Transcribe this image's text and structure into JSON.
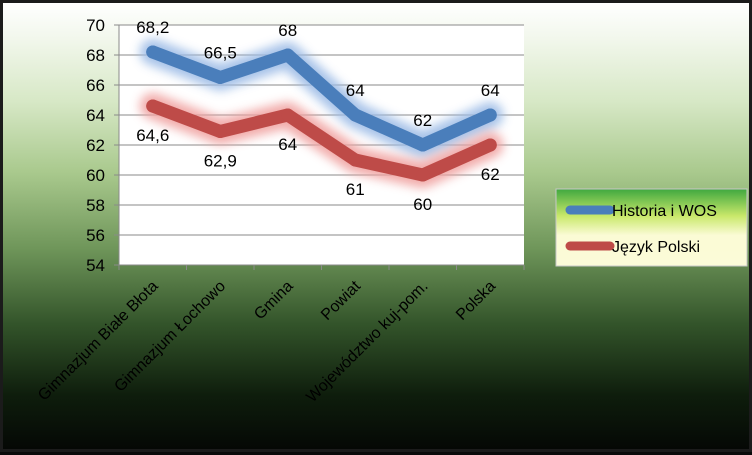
{
  "chart_data": {
    "type": "line",
    "categories": [
      "Gimnazjum Białe Błota",
      "Gimnazjum Łochowo",
      "Gmina",
      "Powiat",
      "Województwo kuj-pom.",
      "Polska"
    ],
    "series": [
      {
        "name": "Historia i WOS",
        "values": [
          68.2,
          66.5,
          68,
          64,
          62,
          64
        ],
        "labels": [
          "68,2",
          "66,5",
          "68",
          "64",
          "62",
          "64"
        ],
        "color": "#4a7ebb"
      },
      {
        "name": "Język Polski",
        "values": [
          64.6,
          62.9,
          64,
          61,
          60,
          62
        ],
        "labels": [
          "64,6",
          "62,9",
          "64",
          "61",
          "60",
          "62"
        ],
        "color": "#be4b48"
      }
    ],
    "yticks": [
      "54",
      "56",
      "58",
      "60",
      "62",
      "64",
      "66",
      "68",
      "70"
    ],
    "ylim": [
      54,
      70
    ],
    "grid": true,
    "legend_position": "right",
    "title": "",
    "xlabel": "",
    "ylabel": ""
  }
}
